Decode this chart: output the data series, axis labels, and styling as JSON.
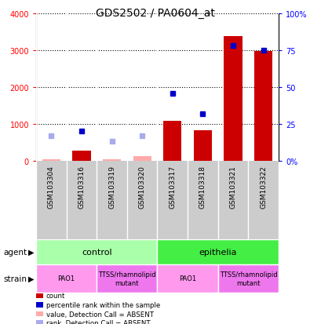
{
  "title": "GDS2502 / PA0604_at",
  "samples": [
    "GSM103304",
    "GSM103316",
    "GSM103319",
    "GSM103320",
    "GSM103317",
    "GSM103318",
    "GSM103321",
    "GSM103322"
  ],
  "count_values": [
    50,
    280,
    50,
    120,
    1080,
    820,
    3380,
    2970
  ],
  "count_absent": [
    true,
    false,
    true,
    true,
    false,
    false,
    false,
    false
  ],
  "rank_values": [
    17,
    20,
    13.5,
    17,
    46,
    32,
    78,
    75
  ],
  "rank_absent": [
    true,
    false,
    true,
    true,
    false,
    false,
    false,
    false
  ],
  "count_bar_color": "#cc0000",
  "count_absent_color": "#ffaaaa",
  "rank_dot_color": "#0000cc",
  "rank_absent_color": "#aaaaee",
  "ylim_left": [
    0,
    4000
  ],
  "ylim_right": [
    0,
    100
  ],
  "yticks_left": [
    0,
    1000,
    2000,
    3000,
    4000
  ],
  "ytick_labels_left": [
    "0",
    "1000",
    "2000",
    "3000",
    "4000"
  ],
  "yticks_right": [
    0,
    25,
    50,
    75,
    100
  ],
  "ytick_labels_right": [
    "0%",
    "25",
    "50",
    "75",
    "100%"
  ],
  "agent_labels": [
    {
      "text": "control",
      "span": [
        0,
        4
      ],
      "color": "#aaffaa"
    },
    {
      "text": "epithelia",
      "span": [
        4,
        8
      ],
      "color": "#44ee44"
    }
  ],
  "strain_labels": [
    {
      "text": "PAO1",
      "span": [
        0,
        2
      ],
      "color": "#ff99ee"
    },
    {
      "text": "TTSS/rhamnolipid\nmutant",
      "span": [
        2,
        4
      ],
      "color": "#ee77ee"
    },
    {
      "text": "PAO1",
      "span": [
        4,
        6
      ],
      "color": "#ff99ee"
    },
    {
      "text": "TTSS/rhamnolipid\nmutant",
      "span": [
        6,
        8
      ],
      "color": "#ee77ee"
    }
  ],
  "legend_items": [
    {
      "color": "#cc0000",
      "label": "count"
    },
    {
      "color": "#0000cc",
      "label": "percentile rank within the sample"
    },
    {
      "color": "#ffaaaa",
      "label": "value, Detection Call = ABSENT"
    },
    {
      "color": "#aaaaee",
      "label": "rank, Detection Call = ABSENT"
    }
  ],
  "agent_row_label": "agent",
  "strain_row_label": "strain",
  "background_color": "#ffffff",
  "plot_bg_color": "#ffffff",
  "tick_label_area_color": "#cccccc"
}
